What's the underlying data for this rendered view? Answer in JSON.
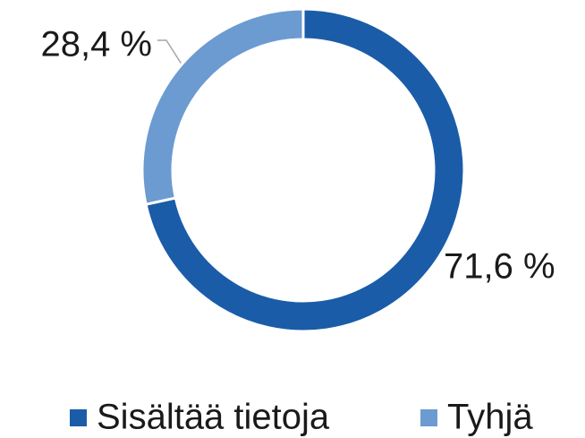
{
  "chart_data": {
    "type": "pie",
    "donut": true,
    "categories": [
      "Sisältää tietoja",
      "Tyhjä"
    ],
    "values": [
      71.6,
      28.4
    ],
    "value_labels": [
      "71,6 %",
      "28,4 %"
    ],
    "colors": [
      "#1a5ca8",
      "#6b9bd1"
    ],
    "legend": "bottom"
  }
}
